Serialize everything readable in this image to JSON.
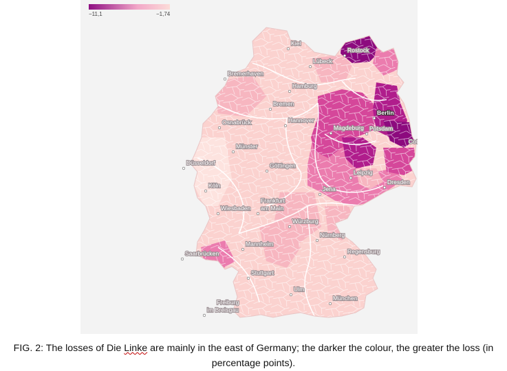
{
  "legend": {
    "min_label": "−11,1",
    "max_label": "−1,74",
    "colors": [
      "#8e0f82",
      "#f2a7c8",
      "#fcdcd8"
    ]
  },
  "colors": {
    "very_light": "#fde3df",
    "light": "#fbd2cf",
    "light_mid": "#f7b6c0",
    "mid": "#eb7cae",
    "dark_mid": "#d5479a",
    "dark": "#b01d8c",
    "darkest": "#8c0a7e",
    "border": "#ffffff"
  },
  "cities": [
    {
      "name": "Kiel",
      "strong": false
    },
    {
      "name": "Rostock",
      "strong": false
    },
    {
      "name": "Lübeck",
      "strong": false
    },
    {
      "name": "Bremerhaven",
      "strong": false
    },
    {
      "name": "Hamburg",
      "strong": false
    },
    {
      "name": "Bremen",
      "strong": false
    },
    {
      "name": "Berlin",
      "strong": true
    },
    {
      "name": "Osnabrück",
      "strong": false
    },
    {
      "name": "Hannover",
      "strong": false
    },
    {
      "name": "Magdeburg",
      "strong": false
    },
    {
      "name": "Potsdam",
      "strong": false
    },
    {
      "name": "Münster",
      "strong": false
    },
    {
      "name": "Cottb",
      "strong": false
    },
    {
      "name": "Düsseldorf",
      "strong": false
    },
    {
      "name": "Göttingen",
      "strong": false
    },
    {
      "name": "Leipzig",
      "strong": false
    },
    {
      "name": "Köln",
      "strong": false
    },
    {
      "name": "Jena",
      "strong": false
    },
    {
      "name": "Dresden",
      "strong": false
    },
    {
      "name": "Frankfurt",
      "strong": false
    },
    {
      "name": "am Main",
      "strong": false
    },
    {
      "name": "Wiesbaden",
      "strong": false
    },
    {
      "name": "Würzburg",
      "strong": false
    },
    {
      "name": "Nürnberg",
      "strong": false
    },
    {
      "name": "Mannheim",
      "strong": false
    },
    {
      "name": "Regensburg",
      "strong": false
    },
    {
      "name": "Saarbrücken",
      "strong": false
    },
    {
      "name": "Stuttgart",
      "strong": false
    },
    {
      "name": "Ulm",
      "strong": false
    },
    {
      "name": "München",
      "strong": false
    },
    {
      "name": "Freiburg",
      "strong": false
    },
    {
      "name": "im Breisgau",
      "strong": false
    }
  ],
  "caption": {
    "before": "FIG. 2: The losses of Die ",
    "underlined": "Linke",
    "after": " are mainly in the east of Germany; the darker the colour, the greater the loss (in percentage points)."
  }
}
